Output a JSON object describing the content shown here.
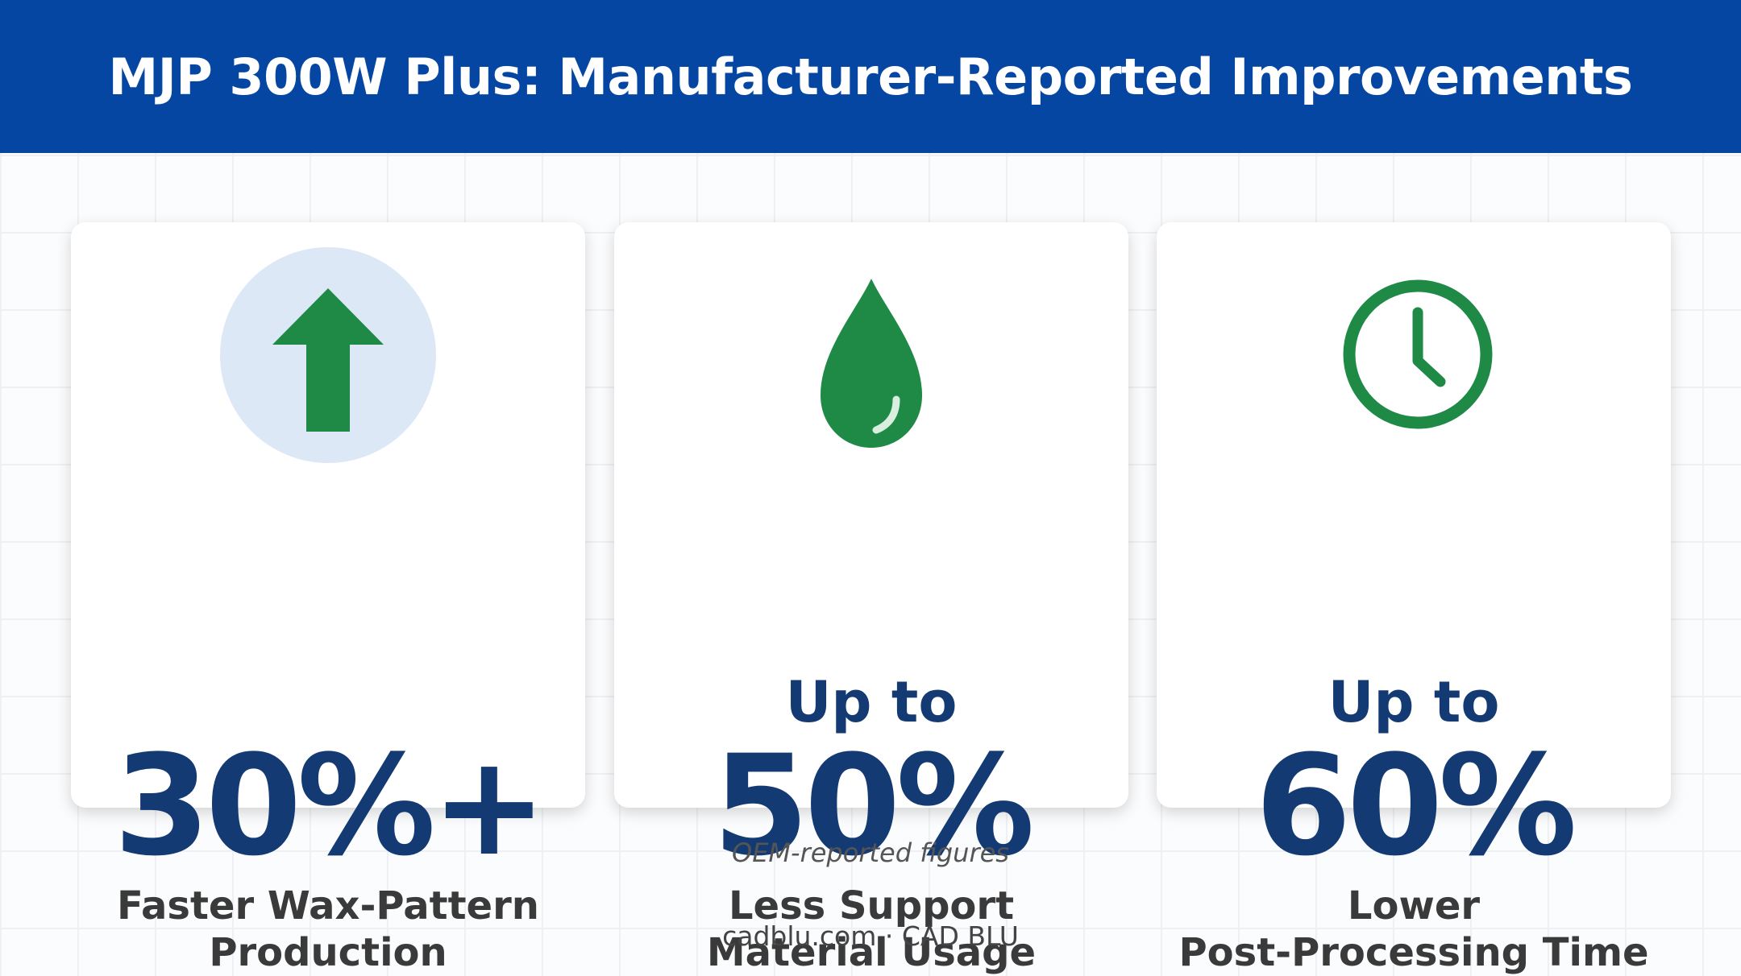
{
  "header": {
    "title": "MJP 300W Plus: Manufacturer-Reported Improvements"
  },
  "cards": [
    {
      "prefix": null,
      "value": "30%+",
      "label": [
        "Faster Wax-Pattern",
        "Production"
      ]
    },
    {
      "prefix": "Up to",
      "value": "50%",
      "label": [
        "Less Support",
        "Material Usage"
      ]
    },
    {
      "prefix": "Up to",
      "value": "60%",
      "label": [
        "Lower",
        "Post-Processing Time"
      ]
    }
  ],
  "footnote": "OEM-reported figures",
  "footer": "cadblu.com · CAD BLU"
}
